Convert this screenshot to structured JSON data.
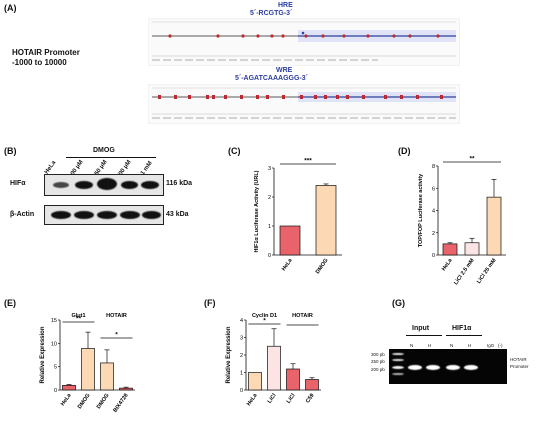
{
  "panels": {
    "A": {
      "label": "(A)",
      "promoter_title": "HOTAIR Promoter",
      "promoter_range": "-1000 to 10000",
      "hre_name": "HRE",
      "hre_seq": "5´-RCGTG-3´",
      "wre_name": "WRE",
      "wre_seq": "5´-AGATCAAAGGG-3´"
    },
    "B": {
      "label": "(B)",
      "treatment": "DMOG",
      "lanes": [
        "HeLa",
        "100 μM",
        "250 μM",
        "500 μM",
        "1 mM"
      ],
      "rows": [
        {
          "name": "HIFα",
          "size": "116 kDa"
        },
        {
          "name": "β-Actin",
          "size": "43 kDa"
        }
      ]
    },
    "C": {
      "label": "(C)",
      "chart_data": {
        "type": "bar",
        "categories": [
          "HeLa",
          "DMOG"
        ],
        "values": [
          1.0,
          2.4
        ],
        "errors": [
          0.0,
          0.05
        ],
        "colors": [
          "#e8636a",
          "#fcd9b4"
        ],
        "ylabel": "HIF1α Luciferase Activity (URL)",
        "ylim": [
          0,
          3
        ],
        "yticks": [
          "0",
          "1",
          "2",
          "3"
        ],
        "significance": [
          {
            "from": 0,
            "to": 1,
            "text": "***"
          }
        ]
      }
    },
    "D": {
      "label": "(D)",
      "chart_data": {
        "type": "bar",
        "categories": [
          "HeLa",
          "LiCl 2.5 mM",
          "LiCl 25 mM"
        ],
        "values": [
          1.0,
          1.1,
          5.2
        ],
        "errors": [
          0.1,
          0.4,
          1.6
        ],
        "colors": [
          "#e8636a",
          "#fde4e4",
          "#fcd9b4"
        ],
        "ylabel": "TOP/FOP Luciferase activity",
        "ylim": [
          0,
          8
        ],
        "yticks": [
          "0",
          "2",
          "4",
          "6",
          "8"
        ],
        "significance": [
          {
            "from": 0,
            "to": 2,
            "text": "**"
          }
        ]
      }
    },
    "E": {
      "label": "(E)",
      "chart_data": {
        "type": "bar",
        "categories": [
          "HeLa",
          "DMOG",
          "DMOG",
          "BIX4728"
        ],
        "values": [
          1.0,
          8.9,
          5.8,
          0.4
        ],
        "errors": [
          0.2,
          3.5,
          2.8,
          0.2
        ],
        "colors": [
          "#e8636a",
          "#fcd9b4",
          "#fcd9b4",
          "#e8636a"
        ],
        "group_labels": [
          "Glut1",
          "HOTAIR"
        ],
        "ylabel": "Relative Expression",
        "ylim": [
          0,
          15
        ],
        "yticks": [
          "0",
          "5",
          "10",
          "15"
        ],
        "significance": [
          {
            "from": 0,
            "to": 1,
            "text": "**"
          },
          {
            "from": 2,
            "to": 3,
            "text": "*"
          }
        ]
      }
    },
    "F": {
      "label": "(F)",
      "chart_data": {
        "type": "bar",
        "categories": [
          "HeLa",
          "LiCl",
          "LiCl",
          "C59"
        ],
        "values": [
          1.0,
          2.5,
          1.2,
          0.6
        ],
        "errors": [
          0.0,
          1.0,
          0.3,
          0.1
        ],
        "colors": [
          "#fcd9b4",
          "#fde4e4",
          "#e8636a",
          "#e8636a"
        ],
        "group_labels": [
          "Cyclin D1",
          "HOTAIR"
        ],
        "ylabel": "Relative Expression",
        "ylim": [
          0,
          4
        ],
        "yticks": [
          "0",
          "1",
          "2",
          "3",
          "4"
        ],
        "significance": [
          {
            "from": 0,
            "to": 1,
            "text": "*"
          },
          {
            "from": 2,
            "to": 3,
            "text": ""
          }
        ]
      }
    },
    "G": {
      "label": "(G)",
      "groups": [
        "Input",
        "HIF1α"
      ],
      "lane_marks": [
        "N",
        "H",
        "N",
        "H",
        "IgG",
        "(-)"
      ],
      "ladder": [
        "300 pb",
        "250 pb",
        "200 pb"
      ],
      "target": "HOTAIR Promoter"
    }
  }
}
